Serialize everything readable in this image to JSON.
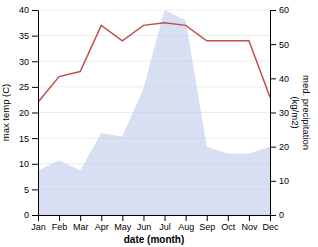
{
  "chart_data": {
    "type": "line",
    "xlabel": "date (month)",
    "ylabel": "max temp (C)",
    "y2label": "med. precipitation\n(kg/m2)",
    "categories": [
      "Jan",
      "Feb",
      "Mar",
      "Apr",
      "May",
      "Jun",
      "Jul",
      "Aug",
      "Sep",
      "Oct",
      "Nov",
      "Dec"
    ],
    "series": [
      {
        "type": "area",
        "axis": "y2",
        "color": "#b8c4e8",
        "values": [
          13,
          16,
          13,
          24,
          23,
          37,
          60,
          57,
          20,
          18,
          18,
          20
        ]
      },
      {
        "type": "line",
        "color": "#c0504d",
        "values": [
          22,
          27,
          28,
          37,
          34,
          37,
          37.5,
          37,
          34,
          34,
          34,
          23
        ]
      }
    ],
    "ylim": [
      0,
      40
    ],
    "yticks": [
      0,
      5,
      10,
      15,
      20,
      25,
      30,
      35,
      40
    ],
    "y2lim": [
      0,
      60
    ],
    "y2ticks": [
      0,
      10,
      20,
      30,
      40,
      50,
      60
    ],
    "grid": true
  }
}
